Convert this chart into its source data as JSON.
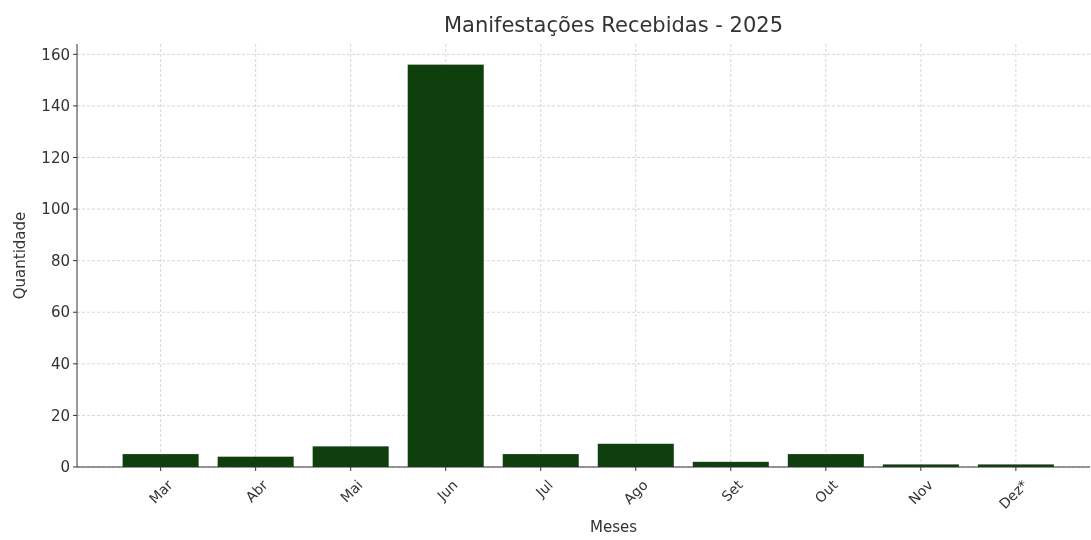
{
  "chart_data": {
    "type": "bar",
    "title": "Manifestações Recebidas - 2025",
    "xlabel": "Meses",
    "ylabel": "Quantidade",
    "categories": [
      "Mar",
      "Abr",
      "Mai",
      "Jun",
      "Jul",
      "Ago",
      "Set",
      "Out",
      "Nov",
      "Dez*"
    ],
    "values": [
      5,
      4,
      8,
      156,
      5,
      9,
      2,
      5,
      1,
      1
    ],
    "color": "#0f3f0c",
    "ylim": [
      0,
      164
    ],
    "yticks": [
      0,
      20,
      40,
      60,
      80,
      100,
      120,
      140,
      160
    ],
    "grid": true
  }
}
